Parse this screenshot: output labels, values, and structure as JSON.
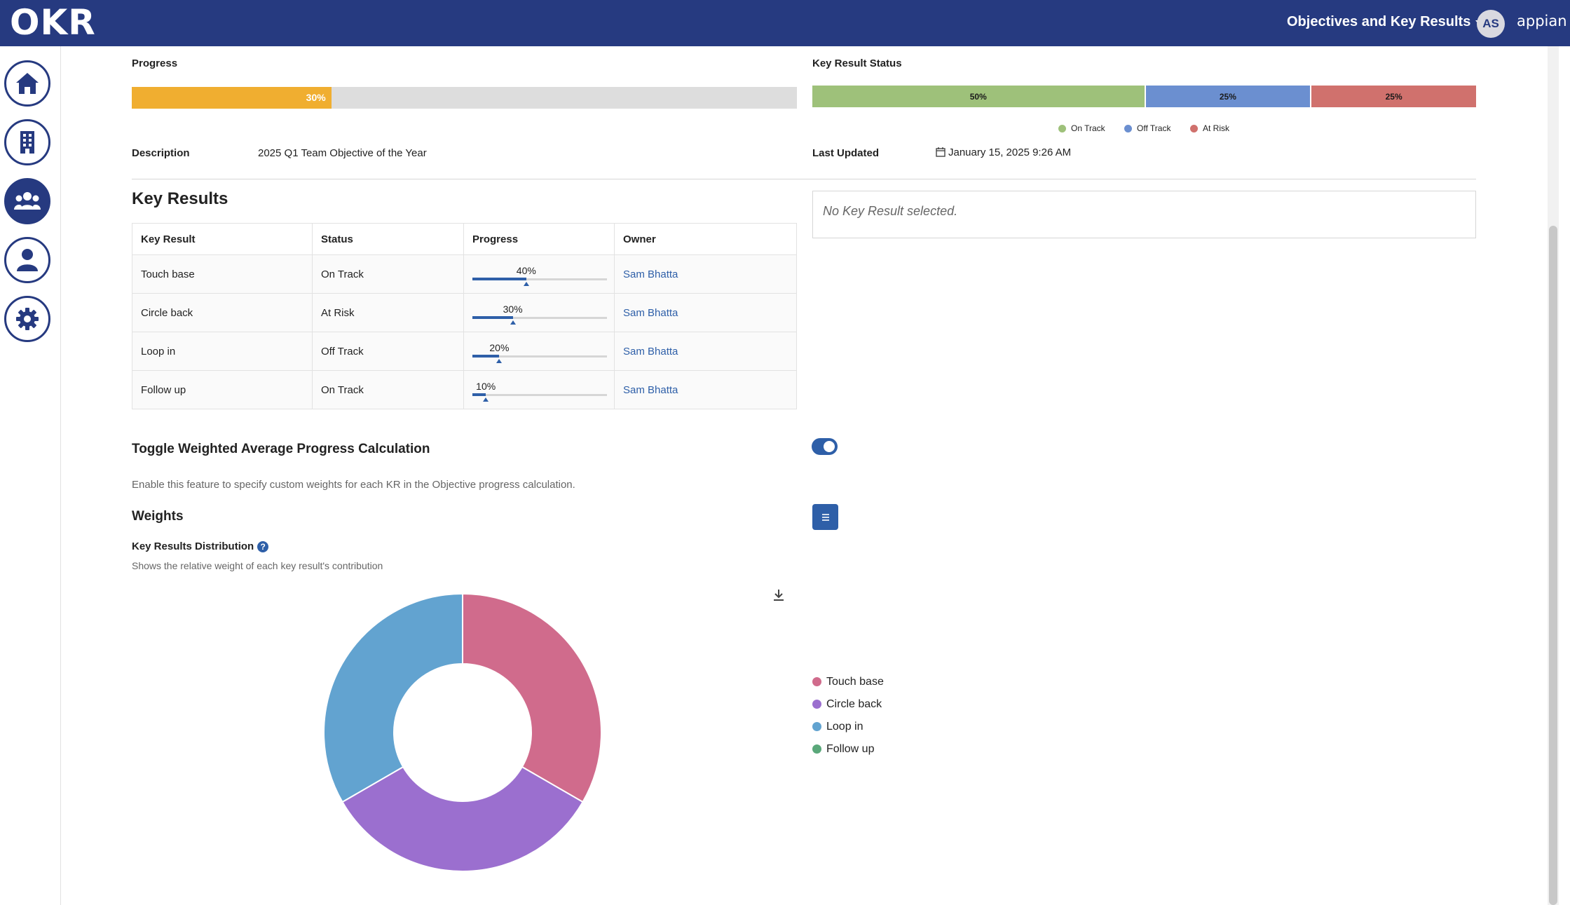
{
  "header": {
    "logo": "OKR",
    "app_menu_label": "Objectives and Key Results",
    "avatar_initials": "AS",
    "brand": "appian"
  },
  "sidebar": {
    "items": [
      {
        "name": "home",
        "icon": "home-icon",
        "active": false
      },
      {
        "name": "building",
        "icon": "building-icon",
        "active": false
      },
      {
        "name": "team",
        "icon": "team-icon",
        "active": true
      },
      {
        "name": "user",
        "icon": "user-icon",
        "active": false
      },
      {
        "name": "settings",
        "icon": "gear-icon",
        "active": false
      }
    ]
  },
  "objective": {
    "progress_label": "Progress",
    "progress_value": 30,
    "progress_text": "30%",
    "key_result_status_label": "Key Result Status",
    "status_segments": [
      {
        "label": "50%",
        "value": 50,
        "color": "#9ec17a",
        "name": "On Track"
      },
      {
        "label": "25%",
        "value": 25,
        "color": "#6b8fd0",
        "name": "Off Track"
      },
      {
        "label": "25%",
        "value": 25,
        "color": "#d0716d",
        "name": "At Risk"
      }
    ],
    "description_label": "Description",
    "description_value": "2025 Q1 Team Objective of the Year",
    "last_updated_label": "Last Updated",
    "last_updated_value": "January 15, 2025 9:26 AM"
  },
  "key_results": {
    "title": "Key Results",
    "columns": [
      "Key Result",
      "Status",
      "Progress",
      "Owner"
    ],
    "rows": [
      {
        "name": "Touch base",
        "status": "On Track",
        "progress": 40,
        "progress_text": "40%",
        "owner": "Sam Bhatta"
      },
      {
        "name": "Circle back",
        "status": "At Risk",
        "progress": 30,
        "progress_text": "30%",
        "owner": "Sam Bhatta"
      },
      {
        "name": "Loop in",
        "status": "Off Track",
        "progress": 20,
        "progress_text": "20%",
        "owner": "Sam Bhatta"
      },
      {
        "name": "Follow up",
        "status": "On Track",
        "progress": 10,
        "progress_text": "10%",
        "owner": "Sam Bhatta"
      }
    ],
    "empty_detail": "No Key Result selected."
  },
  "weighting": {
    "toggle_title": "Toggle Weighted Average Progress Calculation",
    "toggle_on": true,
    "toggle_description": "Enable this feature to specify custom weights for each KR in the Objective progress calculation.",
    "weights_title": "Weights",
    "distribution_title": "Key Results Distribution",
    "distribution_help": "?",
    "distribution_subtitle": "Shows the relative weight of each key result's contribution"
  },
  "chart_data": {
    "type": "pie",
    "donut": true,
    "categories": [
      "Touch base",
      "Circle back",
      "Loop in",
      "Follow up"
    ],
    "values": [
      33.3,
      33.3,
      33.3,
      0
    ],
    "colors": [
      "#d06b8c",
      "#9b6fcf",
      "#62a3d0",
      "#5aa87a"
    ],
    "legend_position": "right"
  }
}
